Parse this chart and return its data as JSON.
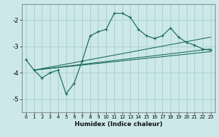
{
  "xlabel": "Humidex (Indice chaleur)",
  "background_color": "#cce8e8",
  "grid_color": "#aad0d0",
  "line_color": "#1a6b5a",
  "xlim": [
    -0.5,
    23.5
  ],
  "ylim": [
    -5.5,
    -1.4
  ],
  "yticks": [
    -5,
    -4,
    -3,
    -2
  ],
  "xticks": [
    0,
    1,
    2,
    3,
    4,
    5,
    6,
    7,
    8,
    9,
    10,
    11,
    12,
    13,
    14,
    15,
    16,
    17,
    18,
    19,
    20,
    21,
    22,
    23
  ],
  "curve1_x": [
    0,
    1,
    2,
    3,
    4,
    5,
    6,
    7,
    8,
    9,
    10,
    11,
    12,
    13,
    14,
    15,
    16,
    17,
    18,
    19,
    20,
    21,
    22,
    23
  ],
  "curve1_y": [
    -3.5,
    -3.9,
    -4.2,
    -4.0,
    -3.9,
    -4.8,
    -4.4,
    -3.55,
    -2.6,
    -2.45,
    -2.35,
    -1.75,
    -1.75,
    -1.9,
    -2.35,
    -2.6,
    -2.7,
    -2.6,
    -2.3,
    -2.65,
    -2.85,
    -2.95,
    -3.1,
    -3.15
  ],
  "line1_x": [
    1,
    23
  ],
  "line1_y": [
    -3.9,
    -3.1
  ],
  "line2_x": [
    1,
    23
  ],
  "line2_y": [
    -3.9,
    -3.2
  ],
  "line3_x": [
    1,
    23
  ],
  "line3_y": [
    -3.9,
    -2.65
  ]
}
